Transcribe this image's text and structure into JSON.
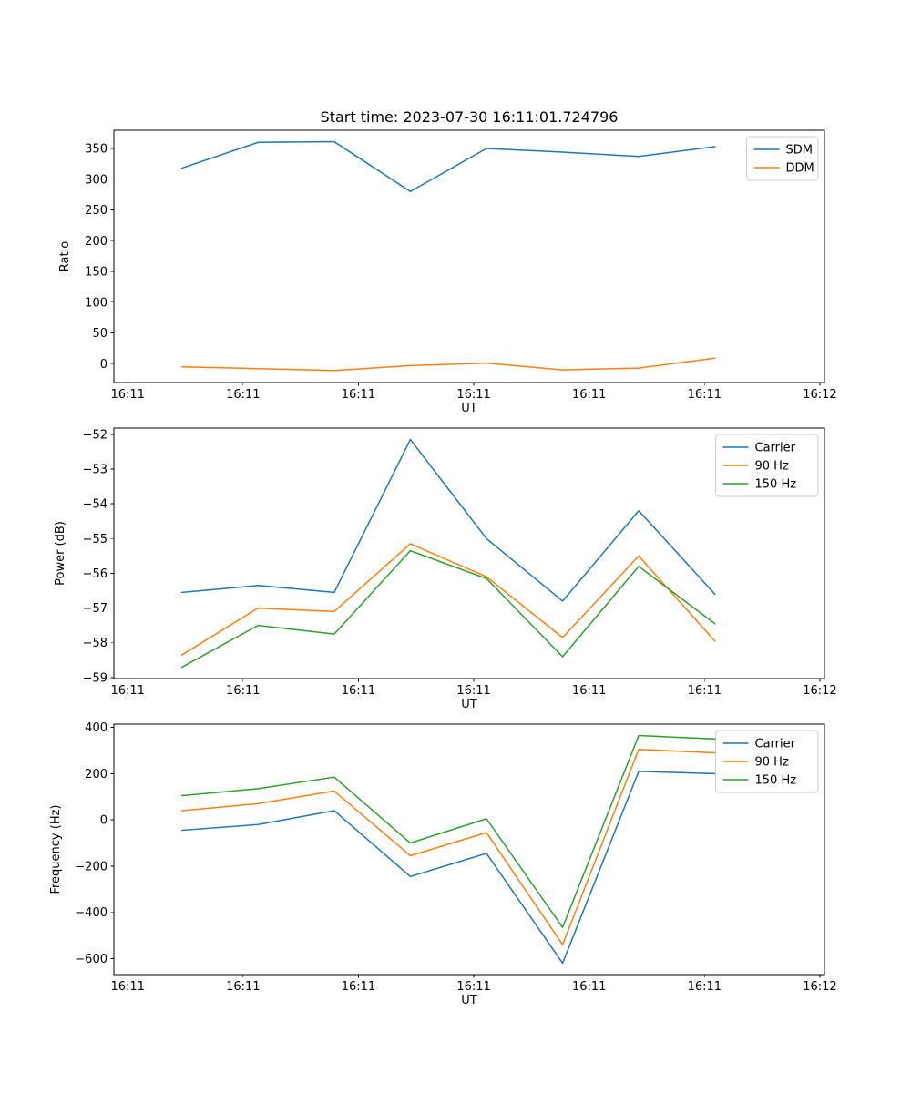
{
  "figure": {
    "background_color": "#ffffff",
    "text_color": "#000000"
  },
  "chart_data": [
    {
      "type": "line",
      "title": "Start time: 2023-07-30 16:11:01.724796",
      "xlabel": "UT",
      "ylabel": "Ratio",
      "x_unit": "seconds after 16:11:00 UT (estimated from tick spacing)",
      "x": [
        4.7,
        11.3,
        17.9,
        24.5,
        31.1,
        37.7,
        44.3,
        50.9
      ],
      "series": [
        {
          "name": "SDM",
          "color": "#1f77b4",
          "values": [
            318,
            360,
            361,
            280,
            350,
            344,
            337,
            353
          ]
        },
        {
          "name": "DDM",
          "color": "#ff7f0e",
          "values": [
            -5,
            -8,
            -11,
            -3,
            1,
            -10,
            -7,
            9
          ]
        }
      ],
      "xlim": [
        -1.2,
        60.4
      ],
      "ylim": [
        -30.6,
        379.6
      ],
      "xticks": [
        0,
        10,
        20,
        30,
        40,
        50,
        60
      ],
      "xticklabels": [
        "16:11",
        "16:11",
        "16:11",
        "16:11",
        "16:11",
        "16:11",
        "16:12"
      ],
      "yticks": [
        0,
        50,
        100,
        150,
        200,
        250,
        300,
        350
      ],
      "yticklabels": [
        "0",
        "50",
        "100",
        "150",
        "200",
        "250",
        "300",
        "350"
      ],
      "legend": {
        "position": "upper right",
        "entries": [
          "SDM",
          "DDM"
        ]
      },
      "grid": false
    },
    {
      "type": "line",
      "title": "",
      "xlabel": "UT",
      "ylabel": "Power (dB)",
      "x_unit": "seconds after 16:11:00 UT (estimated from tick spacing)",
      "x": [
        4.7,
        11.3,
        17.9,
        24.5,
        31.1,
        37.7,
        44.3,
        50.9
      ],
      "series": [
        {
          "name": "Carrier",
          "color": "#1f77b4",
          "values": [
            -56.55,
            -56.35,
            -56.55,
            -52.15,
            -55,
            -56.8,
            -54.2,
            -56.6
          ]
        },
        {
          "name": "90 Hz",
          "color": "#ff7f0e",
          "values": [
            -58.35,
            -57,
            -57.1,
            -55.15,
            -56.1,
            -57.85,
            -55.5,
            -57.95
          ]
        },
        {
          "name": "150 Hz",
          "color": "#2ca02c",
          "values": [
            -58.7,
            -57.5,
            -57.75,
            -55.35,
            -56.15,
            -58.4,
            -55.8,
            -57.45
          ]
        }
      ],
      "xlim": [
        -1.2,
        60.4
      ],
      "ylim": [
        -59.03,
        -51.82
      ],
      "xticks": [
        0,
        10,
        20,
        30,
        40,
        50,
        60
      ],
      "xticklabels": [
        "16:11",
        "16:11",
        "16:11",
        "16:11",
        "16:11",
        "16:11",
        "16:12"
      ],
      "yticks": [
        -59,
        -58,
        -57,
        -56,
        -55,
        -54,
        -53,
        -52
      ],
      "yticklabels": [
        "−59",
        "−58",
        "−57",
        "−56",
        "−55",
        "−54",
        "−53",
        "−52"
      ],
      "legend": {
        "position": "upper right",
        "entries": [
          "Carrier",
          "90 Hz",
          "150 Hz"
        ]
      },
      "grid": false
    },
    {
      "type": "line",
      "title": "",
      "xlabel": "UT",
      "ylabel": "Frequency (Hz)",
      "x_unit": "seconds after 16:11:00 UT (estimated from tick spacing)",
      "x": [
        4.7,
        11.3,
        17.9,
        24.5,
        31.1,
        37.7,
        44.3,
        50.9
      ],
      "series": [
        {
          "name": "Carrier",
          "color": "#1f77b4",
          "values": [
            -45,
            -20,
            40,
            -245,
            -145,
            -620,
            210,
            200
          ]
        },
        {
          "name": "90 Hz",
          "color": "#ff7f0e",
          "values": [
            40,
            70,
            125,
            -155,
            -55,
            -540,
            305,
            290
          ]
        },
        {
          "name": "150 Hz",
          "color": "#2ca02c",
          "values": [
            105,
            135,
            185,
            -100,
            5,
            -465,
            365,
            350
          ]
        }
      ],
      "xlim": [
        -1.2,
        60.4
      ],
      "ylim": [
        -669.3,
        414.3
      ],
      "xticks": [
        0,
        10,
        20,
        30,
        40,
        50,
        60
      ],
      "xticklabels": [
        "16:11",
        "16:11",
        "16:11",
        "16:11",
        "16:11",
        "16:11",
        "16:12"
      ],
      "yticks": [
        -600,
        -400,
        -200,
        0,
        200,
        400
      ],
      "yticklabels": [
        "−600",
        "−400",
        "−200",
        "0",
        "200",
        "400"
      ],
      "legend": {
        "position": "upper right",
        "entries": [
          "Carrier",
          "90 Hz",
          "150 Hz"
        ]
      },
      "grid": false
    }
  ]
}
